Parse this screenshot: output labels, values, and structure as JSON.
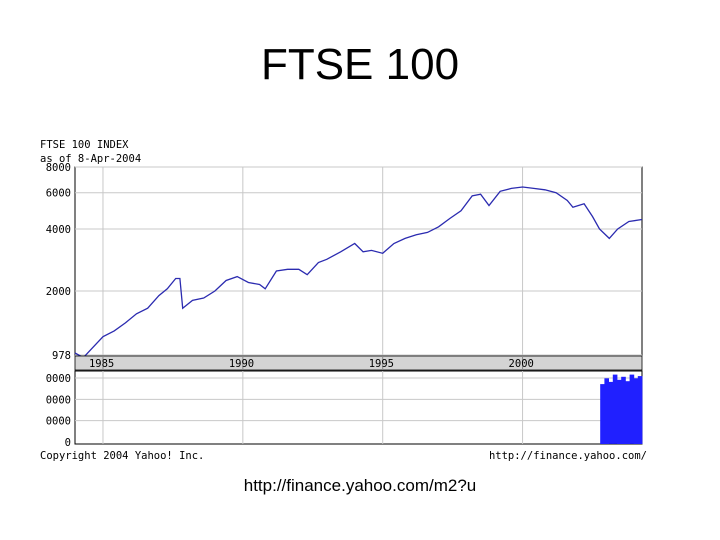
{
  "slide": {
    "title": "FTSE 100",
    "caption": "http://finance.yahoo.com/m2?u"
  },
  "chart_data": {
    "type": "line",
    "header_lines": [
      "FTSE 100 INDEX",
      "as of 8-Apr-2004"
    ],
    "footer_left": "Copyright 2004 Yahoo! Inc.",
    "footer_right": "http://finance.yahoo.com/",
    "price_panel": {
      "y_ticks": [
        978,
        2000,
        4000,
        6000,
        8000
      ],
      "y_tick_labels": [
        "978",
        "2000",
        "4000",
        "6000",
        "8000"
      ],
      "ylim": [
        978,
        8000
      ],
      "scale": "log",
      "line_color": "#2b2bb0",
      "series": [
        {
          "x": [
            1984.0,
            1984.3,
            1984.6,
            1985.0,
            1985.4,
            1985.8,
            1986.2,
            1986.6,
            1987.0,
            1987.3,
            1987.6,
            1987.75,
            1987.85,
            1988.2,
            1988.6,
            1989.0,
            1989.4,
            1989.8,
            1990.2,
            1990.6,
            1990.8,
            1991.2,
            1991.6,
            1992.0,
            1992.3,
            1992.7,
            1993.0,
            1993.5,
            1994.0,
            1994.3,
            1994.6,
            1995.0,
            1995.4,
            1995.8,
            1996.2,
            1996.6,
            1997.0,
            1997.4,
            1997.8,
            1998.2,
            1998.5,
            1998.8,
            1999.2,
            1999.6,
            2000.0,
            2000.4,
            2000.8,
            2001.2,
            2001.6,
            2001.8,
            2002.2,
            2002.5,
            2002.75,
            2003.1,
            2003.4,
            2003.8,
            2004.27
          ],
          "y": [
            1000,
            950,
            1050,
            1200,
            1280,
            1400,
            1550,
            1650,
            1900,
            2050,
            2300,
            2300,
            1650,
            1800,
            1850,
            2000,
            2250,
            2350,
            2200,
            2150,
            2050,
            2500,
            2550,
            2550,
            2400,
            2750,
            2850,
            3100,
            3400,
            3100,
            3150,
            3050,
            3400,
            3600,
            3750,
            3850,
            4100,
            4500,
            4900,
            5800,
            5900,
            5200,
            6100,
            6300,
            6400,
            6300,
            6200,
            6000,
            5500,
            5100,
            5300,
            4600,
            4000,
            3600,
            4000,
            4350,
            4450
          ]
        }
      ]
    },
    "x_axis": {
      "labels": [
        "1985",
        "1990",
        "1995",
        "2000"
      ],
      "positions": [
        1985,
        1990,
        1995,
        2000
      ],
      "xlim": [
        1984.0,
        2004.27
      ]
    },
    "volume_panel": {
      "y_tick_labels": [
        "0000",
        "0000",
        "0000",
        "0"
      ],
      "bar_color": "#2020ff",
      "x": [
        2002.85,
        2003.0,
        2003.15,
        2003.3,
        2003.45,
        2003.6,
        2003.75,
        2003.9,
        2004.05,
        2004.2
      ],
      "values": [
        0.82,
        0.9,
        0.85,
        0.95,
        0.88,
        0.92,
        0.86,
        0.95,
        0.9,
        0.93
      ]
    },
    "grid": true
  }
}
